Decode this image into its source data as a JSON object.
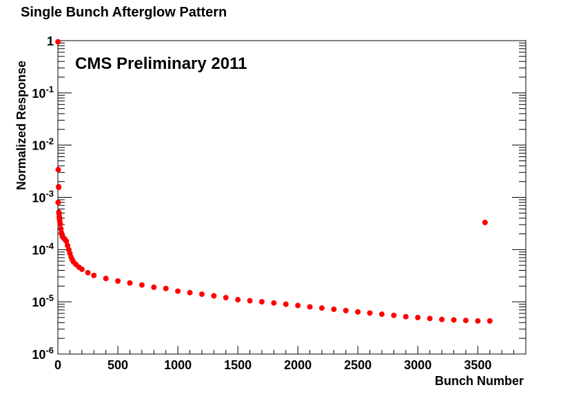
{
  "chart_data": {
    "type": "scatter",
    "title": "Single Bunch Afterglow Pattern",
    "annotation": "CMS Preliminary 2011",
    "xlabel": "Bunch Number",
    "ylabel": "Normalized Response",
    "xlim": [
      0,
      3900
    ],
    "ylim": [
      1e-06,
      1
    ],
    "yscale": "log",
    "grid": false,
    "marker_color": "#ff0000",
    "x_ticks": [
      "0",
      "500",
      "1000",
      "1500",
      "2000",
      "2500",
      "3000",
      "3500"
    ],
    "x_tick_values": [
      0,
      500,
      1000,
      1500,
      2000,
      2500,
      3000,
      3500
    ],
    "y_ticks": [
      {
        "value": 1,
        "base": "1",
        "exp": ""
      },
      {
        "value": 0.1,
        "base": "10",
        "exp": "-1"
      },
      {
        "value": 0.01,
        "base": "10",
        "exp": "-2"
      },
      {
        "value": 0.001,
        "base": "10",
        "exp": "-3"
      },
      {
        "value": 0.0001,
        "base": "10",
        "exp": "-4"
      },
      {
        "value": 1e-05,
        "base": "10",
        "exp": "-5"
      },
      {
        "value": 1e-06,
        "base": "10",
        "exp": "-6"
      }
    ],
    "series": [
      {
        "points": [
          [
            1,
            0.95
          ],
          [
            3,
            0.0034
          ],
          [
            6,
            0.0016
          ],
          [
            7,
            0.00155
          ],
          [
            2,
            0.0008
          ],
          [
            8,
            0.00052
          ],
          [
            10,
            0.00048
          ],
          [
            12,
            0.00042
          ],
          [
            14,
            0.00038
          ],
          [
            16,
            0.00035
          ],
          [
            20,
            0.00031
          ],
          [
            25,
            0.00025
          ],
          [
            30,
            0.00021
          ],
          [
            35,
            0.00019
          ],
          [
            40,
            0.000175
          ],
          [
            50,
            0.000165
          ],
          [
            60,
            0.000155
          ],
          [
            70,
            0.000145
          ],
          [
            80,
            0.00012
          ],
          [
            90,
            0.0001
          ],
          [
            100,
            8.5e-05
          ],
          [
            110,
            7.2e-05
          ],
          [
            120,
            6.4e-05
          ],
          [
            130,
            5.8e-05
          ],
          [
            150,
            5.2e-05
          ],
          [
            175,
            4.6e-05
          ],
          [
            200,
            4.2e-05
          ],
          [
            250,
            3.6e-05
          ],
          [
            300,
            3.2e-05
          ],
          [
            400,
            2.8e-05
          ],
          [
            500,
            2.5e-05
          ],
          [
            600,
            2.3e-05
          ],
          [
            700,
            2.1e-05
          ],
          [
            800,
            1.9e-05
          ],
          [
            900,
            1.8e-05
          ],
          [
            1000,
            1.6e-05
          ],
          [
            1100,
            1.5e-05
          ],
          [
            1200,
            1.4e-05
          ],
          [
            1300,
            1.3e-05
          ],
          [
            1400,
            1.2e-05
          ],
          [
            1500,
            1.1e-05
          ],
          [
            1600,
            1.05e-05
          ],
          [
            1700,
            1e-05
          ],
          [
            1800,
            9.5e-06
          ],
          [
            1900,
            9e-06
          ],
          [
            2000,
            8.5e-06
          ],
          [
            2100,
            8e-06
          ],
          [
            2200,
            7.6e-06
          ],
          [
            2300,
            7.2e-06
          ],
          [
            2400,
            6.8e-06
          ],
          [
            2500,
            6.4e-06
          ],
          [
            2600,
            6.1e-06
          ],
          [
            2700,
            5.8e-06
          ],
          [
            2800,
            5.5e-06
          ],
          [
            2900,
            5.2e-06
          ],
          [
            3000,
            5e-06
          ],
          [
            3100,
            4.8e-06
          ],
          [
            3200,
            4.6e-06
          ],
          [
            3300,
            4.5e-06
          ],
          [
            3400,
            4.4e-06
          ],
          [
            3500,
            4.3e-06
          ],
          [
            3560,
            0.00033
          ],
          [
            3600,
            4.3e-06
          ]
        ]
      }
    ]
  }
}
